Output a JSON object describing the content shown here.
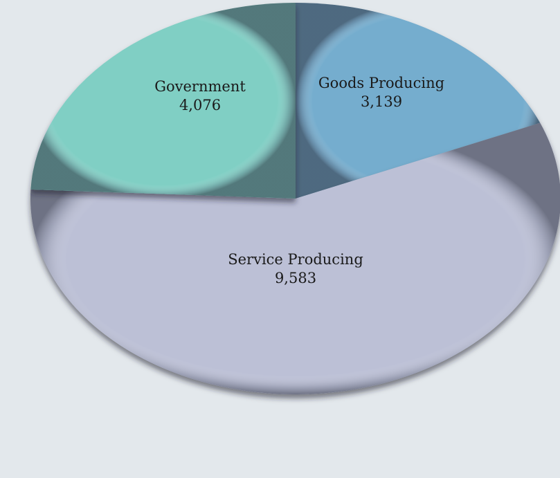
{
  "chart_data": {
    "type": "pie",
    "start": "12 o'clock",
    "direction": "clockwise",
    "slices": [
      {
        "label": "Goods Producing",
        "value": 3139,
        "value_text": "3,139",
        "color": "#74adce"
      },
      {
        "label": "Service Producing",
        "value": 9583,
        "value_text": "9,583",
        "color": "#bcc0d6"
      },
      {
        "label": "Government",
        "value": 4076,
        "value_text": "4,076",
        "color": "#80cfc4"
      }
    ]
  }
}
